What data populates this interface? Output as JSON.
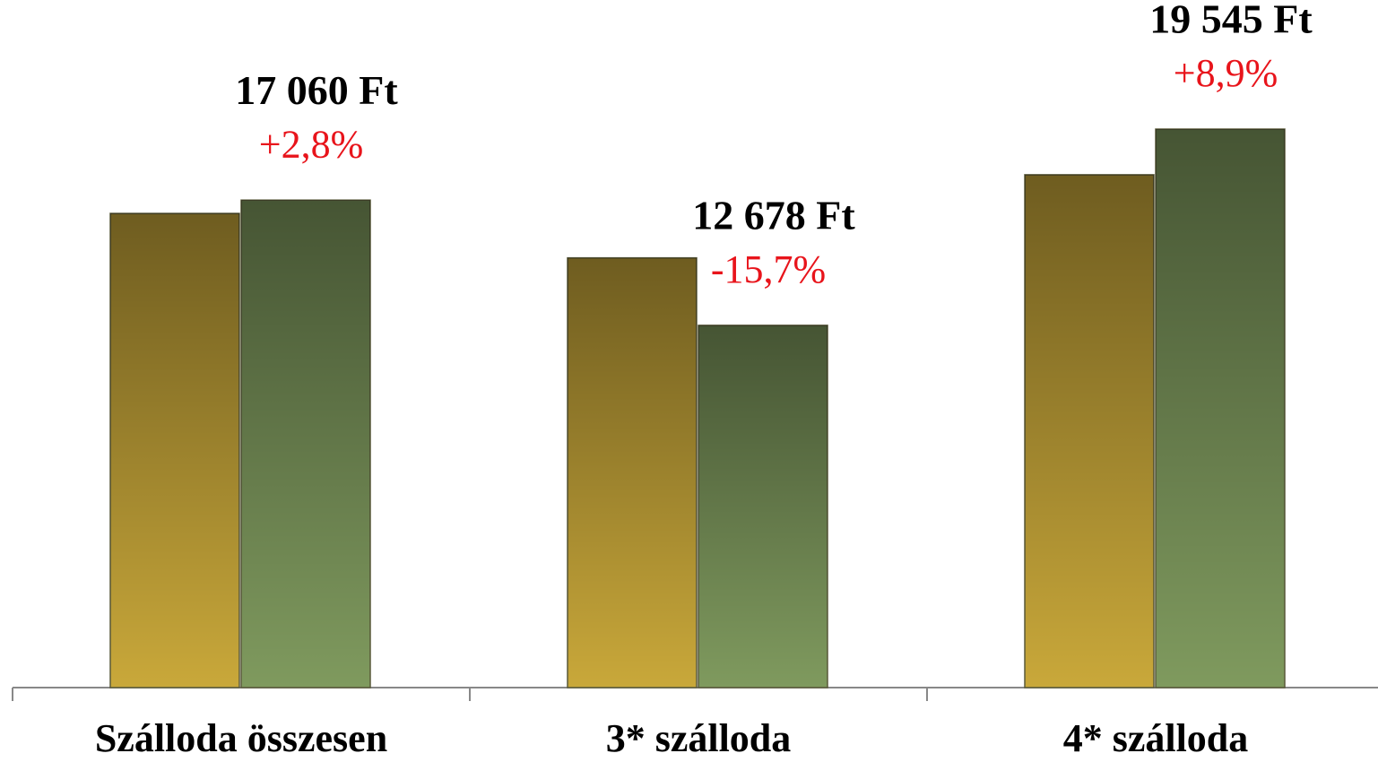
{
  "chart_data": {
    "type": "bar",
    "categories": [
      "Szálloda összesen",
      "3* szálloda",
      "4* szálloda"
    ],
    "series": [
      {
        "color": "#c9a83a",
        "values": [
          16595,
          15039,
          17948
        ]
      },
      {
        "color": "#7f9a5e",
        "values": [
          17060,
          12678,
          19545
        ],
        "value_labels": [
          "17 060 Ft",
          "12 678 Ft",
          "19 545 Ft"
        ]
      }
    ],
    "change_labels": [
      "+2,8%",
      "-15,7%",
      "+8,9%"
    ],
    "ylim": [
      0,
      24000
    ]
  }
}
